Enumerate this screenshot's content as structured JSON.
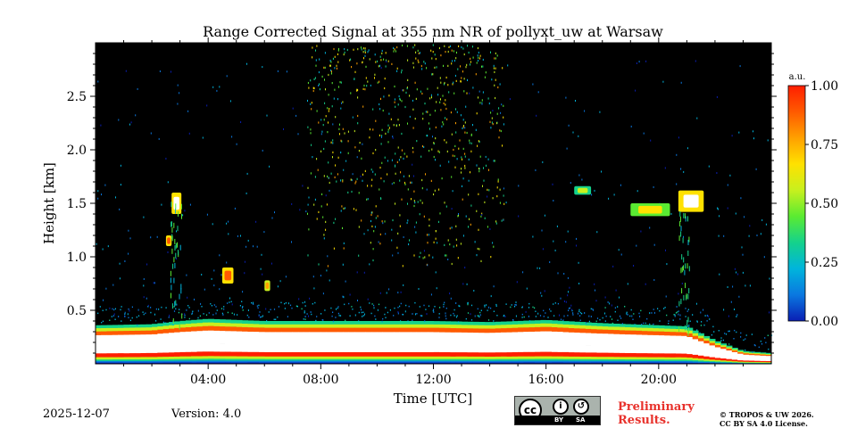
{
  "chart_data": {
    "type": "heatmap",
    "title": "Range Corrected Signal at 355 nm NR of pollyxt_uw at Warsaw",
    "xlabel": "Time [UTC]",
    "ylabel": "Height [km]",
    "xlim_hours": [
      0,
      24
    ],
    "ylim_km": [
      0,
      3.0
    ],
    "x_tick_values": [
      4,
      8,
      12,
      16,
      20
    ],
    "x_tick_labels": [
      "04:00",
      "08:00",
      "12:00",
      "16:00",
      "20:00"
    ],
    "y_tick_values": [
      0.5,
      1.0,
      1.5,
      2.0,
      2.5
    ],
    "y_tick_labels": [
      "0.5",
      "1.0",
      "1.5",
      "2.0",
      "2.5"
    ],
    "colorbar": {
      "label": "a.u.",
      "range": [
        0.0,
        1.0
      ],
      "tick_values": [
        0.0,
        0.25,
        0.5,
        0.75,
        1.0
      ],
      "tick_labels": [
        "0.00",
        "0.25",
        "0.50",
        "0.75",
        "1.00"
      ],
      "colormap": [
        "#0a1eb4",
        "#0a78e0",
        "#00b4dc",
        "#14d28c",
        "#5aeb32",
        "#c8f01e",
        "#ffe100",
        "#ffa000",
        "#ff5a00",
        "#ff1e00"
      ]
    },
    "background_color": "#000000",
    "saturated_color": "#ffffff",
    "boundary_layer_top_km": [
      [
        0,
        0.36
      ],
      [
        2,
        0.37
      ],
      [
        3,
        0.4
      ],
      [
        4,
        0.42
      ],
      [
        6,
        0.4
      ],
      [
        8,
        0.4
      ],
      [
        10,
        0.4
      ],
      [
        12,
        0.4
      ],
      [
        14,
        0.39
      ],
      [
        16,
        0.41
      ],
      [
        18,
        0.38
      ],
      [
        20,
        0.36
      ],
      [
        21,
        0.35
      ],
      [
        22,
        0.22
      ],
      [
        23,
        0.12
      ],
      [
        24,
        0.1
      ]
    ],
    "clouds": [
      {
        "t_start": 2.7,
        "t_end": 3.05,
        "h_low": 1.4,
        "h_high": 1.6,
        "value": 1.0
      },
      {
        "t_start": 2.5,
        "t_end": 2.7,
        "h_low": 1.1,
        "h_high": 1.2,
        "value": 0.9
      },
      {
        "t_start": 4.5,
        "t_end": 4.9,
        "h_low": 0.75,
        "h_high": 0.9,
        "value": 0.9
      },
      {
        "t_start": 6.0,
        "t_end": 6.2,
        "h_low": 0.68,
        "h_high": 0.78,
        "value": 0.8
      },
      {
        "t_start": 19.0,
        "t_end": 20.4,
        "h_low": 1.38,
        "h_high": 1.5,
        "value": 0.7
      },
      {
        "t_start": 20.7,
        "t_end": 21.6,
        "h_low": 1.42,
        "h_high": 1.62,
        "value": 1.0
      },
      {
        "t_start": 17.0,
        "t_end": 17.6,
        "h_low": 1.58,
        "h_high": 1.66,
        "value": 0.5
      }
    ],
    "noise_region": {
      "t_start": 7.5,
      "t_end": 14.5,
      "h_low": 0.9,
      "h_high": 3.0,
      "value_range": [
        0.2,
        0.8
      ]
    },
    "date": "2025-12-07",
    "version": "Version: 4.0"
  },
  "footer": {
    "date": "2025-12-07",
    "version": "Version: 4.0",
    "preliminary": "Preliminary Results.",
    "copyright_line1": "© TROPOS & UW 2026.",
    "copyright_line2": "CC BY SA 4.0 License.",
    "license_badge": {
      "by": "BY",
      "sa": "SA",
      "cc": "cc"
    }
  }
}
